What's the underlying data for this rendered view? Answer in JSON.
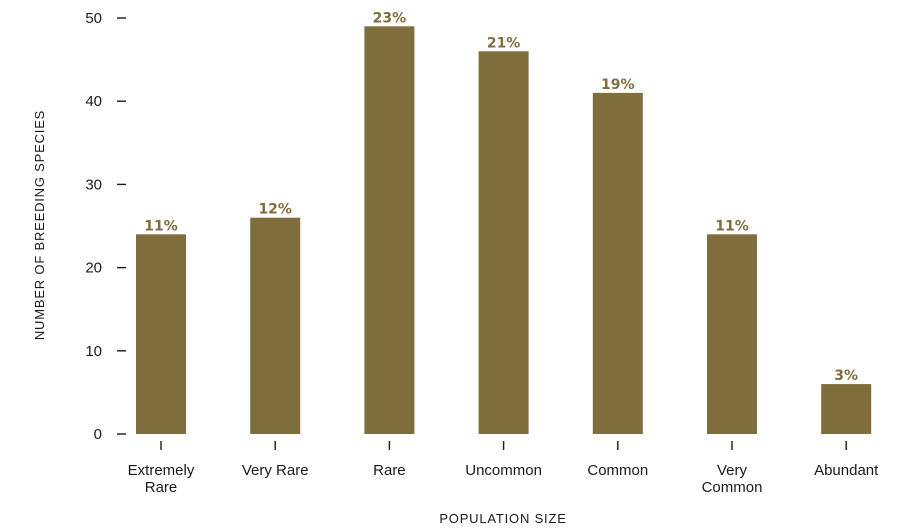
{
  "chart_data": {
    "type": "bar",
    "categories": [
      [
        "Extremely",
        "Rare"
      ],
      [
        "Very Rare"
      ],
      [
        "Rare"
      ],
      [
        "Uncommon"
      ],
      [
        "Common"
      ],
      [
        "Very",
        "Common"
      ],
      [
        "Abundant"
      ]
    ],
    "values": [
      24,
      26,
      49,
      46,
      41,
      24,
      6
    ],
    "data_labels": [
      "11%",
      "12%",
      "23%",
      "21%",
      "19%",
      "11%",
      "3%"
    ],
    "xlabel": "POPULATION SIZE",
    "ylabel": "NUMBER OF BREEDING SPECIES",
    "ylim": [
      0,
      50
    ],
    "yticks": [
      0,
      10,
      20,
      30,
      40,
      50
    ],
    "bar_color": "#7f6d3b",
    "label_color": "#7f6d3b",
    "grid": false
  }
}
